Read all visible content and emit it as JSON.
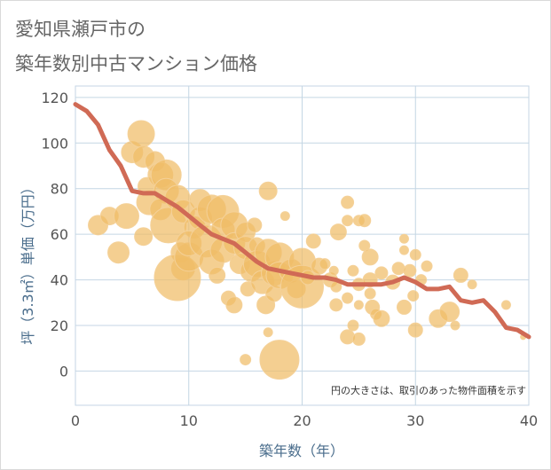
{
  "title_lines": [
    "愛知県瀬戸市の",
    "築年数別中古マンション価格"
  ],
  "colors": {
    "bubble": "#f0bd66",
    "bubble_stroke": "#f4d199",
    "line": "#d06a55",
    "grid": "#c4d6e4",
    "tick_label": "#555555",
    "axis_label": "#4a6d8c",
    "title": "#666666"
  },
  "chart_data": {
    "type": "scatter",
    "title": "愛知県瀬戸市の 築年数別中古マンション価格",
    "xlabel": "築年数（年）",
    "ylabel": "坪（3.3㎡）単価（万円）",
    "xlim": [
      0,
      40
    ],
    "ylim": [
      -15,
      125
    ],
    "x_ticks": [
      0,
      10,
      20,
      30,
      40
    ],
    "y_ticks": [
      0,
      20,
      40,
      60,
      80,
      100,
      120
    ],
    "grid": true,
    "annotation": "円の大きさは、取引のあった物件面積を示す",
    "series": [
      {
        "type": "line",
        "x": [
          0,
          1,
          2,
          3,
          4,
          5,
          6,
          7,
          8,
          9,
          10,
          11,
          12,
          13,
          14,
          15,
          16,
          17,
          18,
          19,
          20,
          21,
          22,
          23,
          24,
          25,
          26,
          27,
          28,
          29,
          30,
          31,
          32,
          33,
          34,
          35,
          36,
          37,
          38,
          39,
          40
        ],
        "y": [
          117,
          114,
          108,
          97,
          90,
          79,
          78,
          78,
          75,
          72,
          68,
          64,
          60,
          58,
          56,
          52,
          48,
          45,
          44,
          43,
          42,
          41,
          41,
          40,
          38,
          38,
          38,
          38,
          39,
          41,
          39,
          36,
          36,
          37,
          31,
          30,
          31,
          26,
          19,
          18,
          15
        ]
      },
      {
        "type": "bubble",
        "points": [
          [
            2,
            64,
            11
          ],
          [
            3,
            68,
            10
          ],
          [
            3.8,
            52,
            12
          ],
          [
            4.5,
            68,
            14
          ],
          [
            5,
            96,
            12
          ],
          [
            5.8,
            104,
            15
          ],
          [
            6,
            94,
            12
          ],
          [
            6.3,
            81,
            10
          ],
          [
            6.5,
            74,
            14
          ],
          [
            6,
            59,
            10
          ],
          [
            7,
            92,
            11
          ],
          [
            7.5,
            86,
            14
          ],
          [
            8,
            86,
            17
          ],
          [
            8,
            79,
            14
          ],
          [
            7.5,
            71,
            12
          ],
          [
            8.2,
            64,
            20
          ],
          [
            9,
            76,
            14
          ],
          [
            9.5,
            70,
            13
          ],
          [
            9.3,
            52,
            11
          ],
          [
            9.5,
            45,
            13
          ],
          [
            9,
            41,
            26
          ],
          [
            10,
            50,
            16
          ],
          [
            10.5,
            63,
            12
          ],
          [
            10,
            56,
            14
          ],
          [
            11,
            75,
            12
          ],
          [
            11,
            67,
            13
          ],
          [
            11.5,
            57,
            18
          ],
          [
            12,
            71,
            16
          ],
          [
            12,
            48,
            14
          ],
          [
            12.5,
            42,
            9
          ],
          [
            13,
            70,
            18
          ],
          [
            13,
            62,
            13
          ],
          [
            13,
            53,
            14
          ],
          [
            13.5,
            32,
            8
          ],
          [
            14,
            64,
            15
          ],
          [
            14,
            56,
            12
          ],
          [
            14.5,
            47,
            11
          ],
          [
            14,
            29,
            9
          ],
          [
            15,
            61,
            11
          ],
          [
            15,
            54,
            13
          ],
          [
            15.5,
            44,
            12
          ],
          [
            15.2,
            36,
            8
          ],
          [
            15,
            5,
            6
          ],
          [
            15.8,
            64,
            8
          ],
          [
            16,
            55,
            9
          ],
          [
            16,
            47,
            15
          ],
          [
            16.5,
            39,
            13
          ],
          [
            16.8,
            29,
            10
          ],
          [
            17,
            79,
            10
          ],
          [
            17,
            52,
            15
          ],
          [
            17.5,
            43,
            14
          ],
          [
            17.5,
            34,
            9
          ],
          [
            17,
            17,
            5
          ],
          [
            18,
            50,
            16
          ],
          [
            18,
            42,
            15
          ],
          [
            18.5,
            68,
            5
          ],
          [
            18,
            5,
            22
          ],
          [
            19,
            44,
            13
          ],
          [
            19.5,
            36,
            10
          ],
          [
            20,
            48,
            15
          ],
          [
            20,
            37,
            24
          ],
          [
            20.5,
            41,
            8
          ],
          [
            21,
            57,
            8
          ],
          [
            21.5,
            46,
            9
          ],
          [
            22,
            47,
            6
          ],
          [
            22.5,
            40,
            8
          ],
          [
            22.8,
            44,
            5
          ],
          [
            23,
            37,
            6
          ],
          [
            23,
            29,
            7
          ],
          [
            23.2,
            61,
            9
          ],
          [
            24,
            74,
            7
          ],
          [
            24,
            66,
            6
          ],
          [
            24,
            32,
            6
          ],
          [
            24,
            15,
            8
          ],
          [
            24.5,
            44,
            6
          ],
          [
            25,
            66,
            6
          ],
          [
            25.5,
            66,
            7
          ],
          [
            25,
            38,
            7
          ],
          [
            25,
            29,
            5
          ],
          [
            24.5,
            20,
            6
          ],
          [
            25,
            14,
            7
          ],
          [
            25.5,
            55,
            6
          ],
          [
            26,
            50,
            9
          ],
          [
            26,
            40,
            8
          ],
          [
            26,
            34,
            6
          ],
          [
            26.2,
            28,
            8
          ],
          [
            26.5,
            25,
            6
          ],
          [
            27,
            23,
            9
          ],
          [
            27,
            43,
            7
          ],
          [
            28,
            39,
            8
          ],
          [
            28.5,
            45,
            7
          ],
          [
            29,
            58,
            5
          ],
          [
            29,
            53,
            5
          ],
          [
            29.5,
            44,
            7
          ],
          [
            29.8,
            33,
            6
          ],
          [
            29,
            28,
            8
          ],
          [
            30,
            51,
            6
          ],
          [
            30.5,
            40,
            6
          ],
          [
            30,
            18,
            8
          ],
          [
            31,
            46,
            6
          ],
          [
            32,
            23,
            10
          ],
          [
            33,
            26,
            11
          ],
          [
            33.5,
            20,
            5
          ],
          [
            34,
            42,
            8
          ],
          [
            35,
            38,
            5
          ],
          [
            38,
            29,
            5
          ],
          [
            39.5,
            15,
            3
          ]
        ]
      }
    ]
  }
}
